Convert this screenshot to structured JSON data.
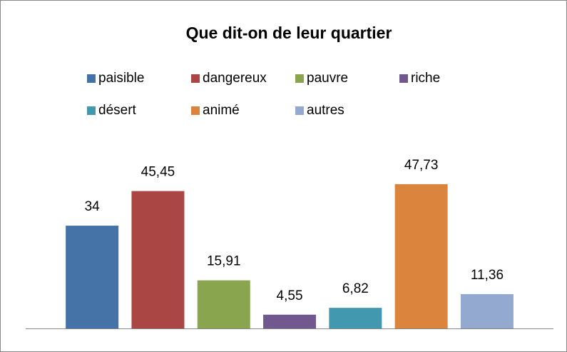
{
  "chart_data": {
    "type": "bar",
    "title": "Que dit-on de leur quartier",
    "series": [
      {
        "name": "paisible",
        "color": "#4572a7",
        "values": [
          34
        ],
        "value_labels": [
          "34"
        ]
      },
      {
        "name": "dangereux",
        "color": "#aa4643",
        "values": [
          45.45
        ],
        "value_labels": [
          "45,45"
        ]
      },
      {
        "name": "pauvre",
        "color": "#89a54e",
        "values": [
          15.91
        ],
        "value_labels": [
          "15,91"
        ]
      },
      {
        "name": "riche",
        "color": "#71588f",
        "values": [
          4.55
        ],
        "value_labels": [
          "4,55"
        ]
      },
      {
        "name": "désert",
        "color": "#4198af",
        "values": [
          6.82
        ],
        "value_labels": [
          "6,82"
        ]
      },
      {
        "name": "animé",
        "color": "#db843d",
        "values": [
          47.73
        ],
        "value_labels": [
          "47,73"
        ]
      },
      {
        "name": "autres",
        "color": "#93a9cf",
        "values": [
          11.36
        ],
        "value_labels": [
          "11,36"
        ]
      }
    ],
    "ylim": [
      0,
      60
    ],
    "legend": "top"
  }
}
